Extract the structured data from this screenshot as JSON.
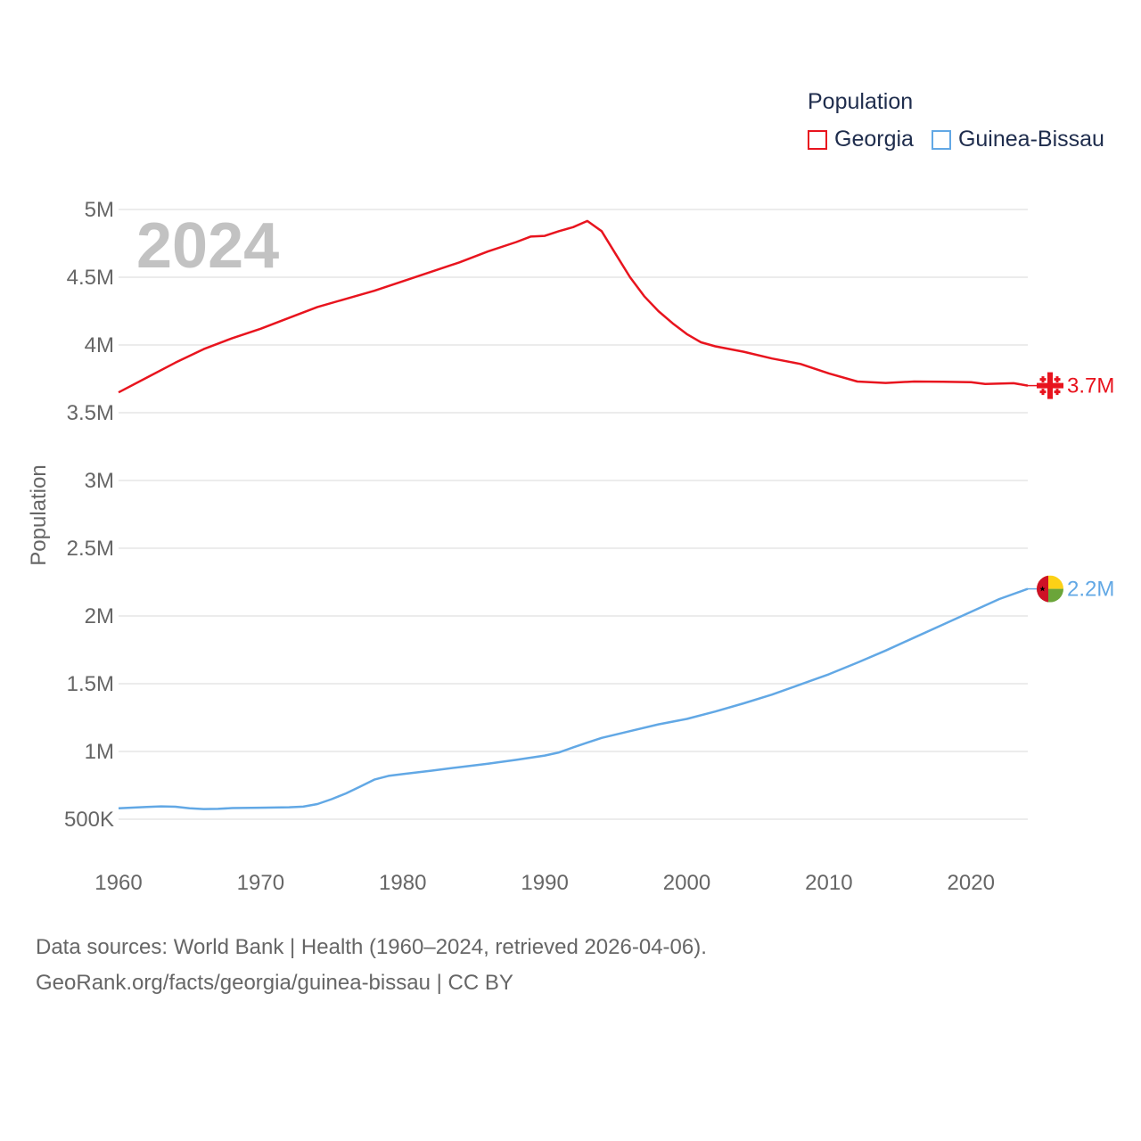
{
  "legend": {
    "title": "Population",
    "items": [
      {
        "label": "Georgia",
        "color": "#e8141e"
      },
      {
        "label": "Guinea-Bissau",
        "color": "#62a8e5"
      }
    ]
  },
  "chart_data": {
    "type": "line",
    "year_label": "2024",
    "ylabel": "Population",
    "xlabel": "",
    "xlim": [
      1960,
      2024
    ],
    "ylim": [
      500000,
      5000000
    ],
    "x_ticks": [
      "1960",
      "1970",
      "1980",
      "1990",
      "2000",
      "2010",
      "2020"
    ],
    "y_ticks": [
      {
        "value": 500000,
        "label": "500K"
      },
      {
        "value": 1000000,
        "label": "1M"
      },
      {
        "value": 1500000,
        "label": "1.5M"
      },
      {
        "value": 2000000,
        "label": "2M"
      },
      {
        "value": 2500000,
        "label": "2.5M"
      },
      {
        "value": 3000000,
        "label": "3M"
      },
      {
        "value": 3500000,
        "label": "3.5M"
      },
      {
        "value": 4000000,
        "label": "4M"
      },
      {
        "value": 4500000,
        "label": "4.5M"
      },
      {
        "value": 5000000,
        "label": "5M"
      }
    ],
    "series": [
      {
        "name": "Georgia",
        "color": "#e8141e",
        "end_label": "3.7M",
        "flag": "georgia-flag-icon",
        "points": [
          [
            1960,
            3650000
          ],
          [
            1962,
            3760000
          ],
          [
            1964,
            3870000
          ],
          [
            1966,
            3970000
          ],
          [
            1968,
            4050000
          ],
          [
            1970,
            4120000
          ],
          [
            1972,
            4200000
          ],
          [
            1974,
            4280000
          ],
          [
            1976,
            4340000
          ],
          [
            1978,
            4400000
          ],
          [
            1980,
            4470000
          ],
          [
            1982,
            4540000
          ],
          [
            1984,
            4610000
          ],
          [
            1986,
            4690000
          ],
          [
            1988,
            4760000
          ],
          [
            1989,
            4800000
          ],
          [
            1990,
            4805000
          ],
          [
            1991,
            4840000
          ],
          [
            1992,
            4870000
          ],
          [
            1993,
            4915000
          ],
          [
            1994,
            4840000
          ],
          [
            1995,
            4670000
          ],
          [
            1996,
            4500000
          ],
          [
            1997,
            4360000
          ],
          [
            1998,
            4250000
          ],
          [
            1999,
            4160000
          ],
          [
            2000,
            4080000
          ],
          [
            2001,
            4020000
          ],
          [
            2002,
            3990000
          ],
          [
            2004,
            3950000
          ],
          [
            2006,
            3900000
          ],
          [
            2008,
            3860000
          ],
          [
            2010,
            3790000
          ],
          [
            2012,
            3730000
          ],
          [
            2014,
            3720000
          ],
          [
            2016,
            3730000
          ],
          [
            2018,
            3728000
          ],
          [
            2020,
            3725000
          ],
          [
            2021,
            3712000
          ],
          [
            2023,
            3718000
          ],
          [
            2024,
            3700000
          ]
        ]
      },
      {
        "name": "Guinea-Bissau",
        "color": "#62a8e5",
        "end_label": "2.2M",
        "flag": "guinea-bissau-flag-icon",
        "points": [
          [
            1960,
            580000
          ],
          [
            1962,
            590000
          ],
          [
            1963,
            595000
          ],
          [
            1964,
            592000
          ],
          [
            1965,
            580000
          ],
          [
            1966,
            575000
          ],
          [
            1967,
            576000
          ],
          [
            1968,
            582000
          ],
          [
            1970,
            585000
          ],
          [
            1972,
            588000
          ],
          [
            1973,
            593000
          ],
          [
            1974,
            612000
          ],
          [
            1975,
            648000
          ],
          [
            1976,
            690000
          ],
          [
            1977,
            740000
          ],
          [
            1978,
            792000
          ],
          [
            1979,
            820000
          ],
          [
            1980,
            833000
          ],
          [
            1982,
            858000
          ],
          [
            1984,
            884000
          ],
          [
            1986,
            910000
          ],
          [
            1988,
            938000
          ],
          [
            1990,
            970000
          ],
          [
            1991,
            993000
          ],
          [
            1992,
            1030000
          ],
          [
            1993,
            1065000
          ],
          [
            1994,
            1100000
          ],
          [
            1996,
            1150000
          ],
          [
            1998,
            1200000
          ],
          [
            2000,
            1240000
          ],
          [
            2002,
            1295000
          ],
          [
            2004,
            1355000
          ],
          [
            2006,
            1420000
          ],
          [
            2008,
            1495000
          ],
          [
            2010,
            1570000
          ],
          [
            2012,
            1655000
          ],
          [
            2014,
            1745000
          ],
          [
            2016,
            1840000
          ],
          [
            2018,
            1935000
          ],
          [
            2020,
            2030000
          ],
          [
            2022,
            2125000
          ],
          [
            2024,
            2200000
          ]
        ]
      }
    ]
  },
  "footer": {
    "line1": "Data sources: World Bank | Health (1960–2024, retrieved 2026-04-06).",
    "line2": "GeoRank.org/facts/georgia/guinea-bissau | CC BY"
  }
}
